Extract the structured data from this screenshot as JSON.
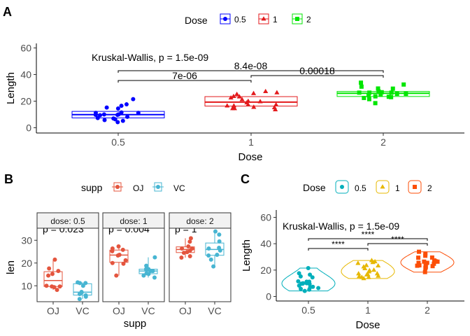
{
  "chart_data": [
    {
      "panel_label": "A",
      "type": "box+jitter",
      "xlabel": "Dose",
      "ylabel": "Length",
      "categories": [
        "0.5",
        "1",
        "2"
      ],
      "ylim": [
        0,
        60
      ],
      "yticks": [
        0,
        20,
        40,
        60
      ],
      "legend": {
        "title": "Dose",
        "position": "top",
        "entries": [
          "0.5",
          "1",
          "2"
        ]
      },
      "colors": {
        "0.5": "#0000FF",
        "1": "#E31A1C",
        "2": "#00E600"
      },
      "boxes": [
        {
          "q1": 7.4,
          "median": 9.9,
          "q3": 12.3
        },
        {
          "q1": 16.3,
          "median": 19.3,
          "q3": 23.4
        },
        {
          "q1": 23.5,
          "median": 25.9,
          "q3": 27.3
        }
      ],
      "points": [
        [
          4.2,
          11.5,
          7.3,
          5.8,
          6.4,
          10.0,
          11.2,
          11.2,
          5.2,
          7.0,
          15.2,
          21.5,
          17.6,
          9.7,
          14.5,
          10.0,
          8.2,
          9.4,
          16.5,
          9.7
        ],
        [
          16.5,
          16.5,
          15.2,
          17.3,
          22.5,
          17.3,
          13.6,
          14.5,
          18.8,
          15.5,
          19.7,
          23.3,
          23.6,
          26.4,
          20.0,
          25.2,
          25.8,
          21.2,
          14.5,
          27.3
        ],
        [
          23.6,
          18.5,
          33.9,
          25.5,
          26.4,
          32.5,
          26.7,
          21.5,
          23.3,
          29.5,
          25.5,
          26.4,
          22.4,
          24.5,
          24.8,
          30.9,
          26.4,
          27.3,
          29.4,
          23.0
        ]
      ],
      "global_test": "Kruskal-Wallis, p = 1.5e-09",
      "comparisons": [
        {
          "from": "0.5",
          "to": "1",
          "label": "7e-06"
        },
        {
          "from": "0.5",
          "to": "2",
          "label": "8.4e-08"
        },
        {
          "from": "1",
          "to": "2",
          "label": "0.00018"
        }
      ]
    },
    {
      "panel_label": "B",
      "type": "box+jitter",
      "xlabel": "supp",
      "ylabel": "len",
      "categories": [
        "OJ",
        "VC"
      ],
      "ylim": [
        3,
        35
      ],
      "yticks": [
        10,
        20,
        30
      ],
      "legend": {
        "title": "supp",
        "position": "top",
        "entries": [
          "OJ",
          "VC"
        ]
      },
      "colors": {
        "OJ": "#E4553E",
        "VC": "#47B5D2"
      },
      "facets": [
        {
          "strip": "dose: 0.5",
          "p_label": "p = 0.023",
          "boxes": [
            {
              "q1": 9.7,
              "median": 12.3,
              "q3": 16.2
            },
            {
              "q1": 5.9,
              "median": 7.2,
              "q3": 10.9
            }
          ],
          "points": [
            [
              15.2,
              21.5,
              17.6,
              9.7,
              14.5,
              10.0,
              8.2,
              9.4,
              16.5,
              9.7
            ],
            [
              4.2,
              11.5,
              7.3,
              5.8,
              6.4,
              10.0,
              11.2,
              11.2,
              5.2,
              7.0
            ]
          ]
        },
        {
          "strip": "dose: 1",
          "p_label": "p = 0.004",
          "boxes": [
            {
              "q1": 20.3,
              "median": 23.5,
              "q3": 25.7
            },
            {
              "q1": 15.3,
              "median": 16.5,
              "q3": 17.3
            }
          ],
          "points": [
            [
              19.7,
              23.3,
              23.6,
              26.4,
              20.0,
              25.2,
              25.8,
              21.2,
              14.5,
              27.3
            ],
            [
              16.5,
              16.5,
              15.2,
              17.3,
              22.5,
              17.3,
              13.6,
              14.5,
              18.8,
              15.5
            ]
          ]
        },
        {
          "strip": "dose: 2",
          "p_label": "p = 1",
          "boxes": [
            {
              "q1": 24.6,
              "median": 25.95,
              "q3": 27.1
            },
            {
              "q1": 23.4,
              "median": 25.95,
              "q3": 28.8
            }
          ],
          "points": [
            [
              25.5,
              26.4,
              22.4,
              24.5,
              24.8,
              30.9,
              26.4,
              27.3,
              29.4,
              23.0
            ],
            [
              23.6,
              18.5,
              33.9,
              25.5,
              26.4,
              32.5,
              26.7,
              21.5,
              23.3,
              29.5
            ]
          ]
        }
      ]
    },
    {
      "panel_label": "C",
      "type": "violin+jitter",
      "xlabel": "Dose",
      "ylabel": "Length",
      "categories": [
        "0.5",
        "1",
        "2"
      ],
      "ylim": [
        0,
        60
      ],
      "yticks": [
        0,
        20,
        40,
        60
      ],
      "legend": {
        "title": "Dose",
        "position": "top",
        "entries": [
          "0.5",
          "1",
          "2"
        ]
      },
      "colors": {
        "0.5": "#00AFBB",
        "1": "#E7B800",
        "2": "#FC4E07"
      },
      "points": [
        [
          4.2,
          11.5,
          7.3,
          5.8,
          6.4,
          10.0,
          11.2,
          11.2,
          5.2,
          7.0,
          15.2,
          21.5,
          17.6,
          9.7,
          14.5,
          10.0,
          8.2,
          9.4,
          16.5,
          9.7
        ],
        [
          16.5,
          16.5,
          15.2,
          17.3,
          22.5,
          17.3,
          13.6,
          14.5,
          18.8,
          15.5,
          19.7,
          23.3,
          23.6,
          26.4,
          20.0,
          25.2,
          25.8,
          21.2,
          14.5,
          27.3
        ],
        [
          23.6,
          18.5,
          33.9,
          25.5,
          26.4,
          32.5,
          26.7,
          21.5,
          23.3,
          29.5,
          25.5,
          26.4,
          22.4,
          24.5,
          24.8,
          30.9,
          26.4,
          27.3,
          29.4,
          23.0
        ]
      ],
      "global_test": "Kruskal-Wallis, p = 1.5e-09",
      "comparisons": [
        {
          "from": "0.5",
          "to": "1",
          "label": "****"
        },
        {
          "from": "0.5",
          "to": "2",
          "label": "****"
        },
        {
          "from": "1",
          "to": "2",
          "label": "****"
        }
      ]
    }
  ]
}
